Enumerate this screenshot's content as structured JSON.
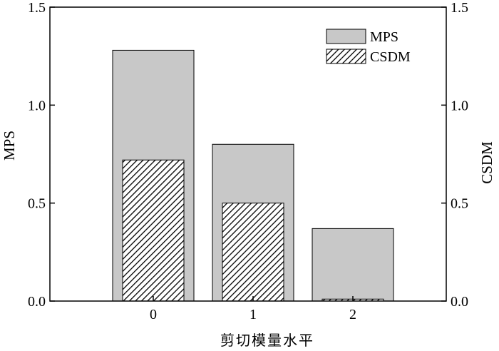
{
  "chart_data": {
    "type": "bar",
    "categories": [
      "0",
      "1",
      "2"
    ],
    "series": [
      {
        "name": "MPS",
        "axis": "left",
        "values": [
          1.28,
          0.8,
          0.37
        ],
        "color": "#c8c8c8",
        "pattern": "solid"
      },
      {
        "name": "CSDM",
        "axis": "right",
        "values": [
          0.72,
          0.5,
          0.01
        ],
        "color": "#ffffff",
        "pattern": "diagonal-hatch"
      }
    ],
    "title": "",
    "xlabel": "剪切模量水平",
    "ylabel": "MPS",
    "ylabel_right": "CSDM",
    "ylim": [
      0,
      1.5
    ],
    "ylim_right": [
      0,
      1.5
    ],
    "yticks": [
      "0.0",
      "0.5",
      "1.0",
      "1.5"
    ],
    "yticks_right": [
      "0.0",
      "0.5",
      "1.0",
      "1.5"
    ],
    "grid": false,
    "legend_position": "top-right"
  }
}
